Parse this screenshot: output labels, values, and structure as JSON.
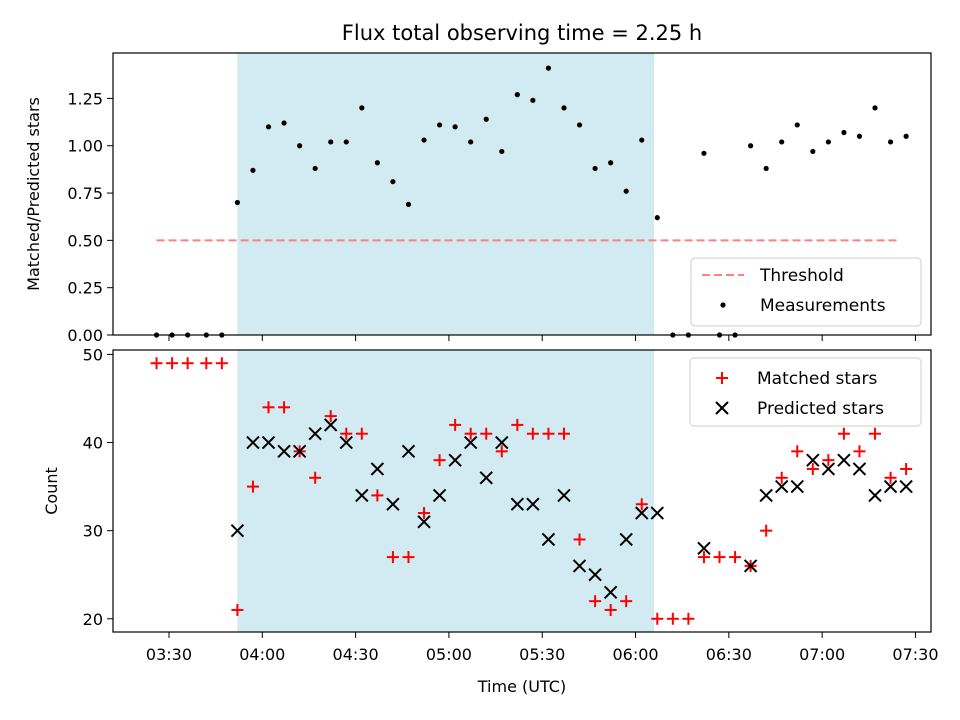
{
  "chart_data": [
    {
      "type": "scatter",
      "title": "Flux total observing time = 2.25 h",
      "ylabel": "Matched/Predicted stars",
      "ylim": [
        0,
        1.49
      ],
      "yticks": [
        0.0,
        0.25,
        0.5,
        0.75,
        1.0,
        1.25
      ],
      "ytick_labels": [
        "0.00",
        "0.25",
        "0.50",
        "0.75",
        "1.00",
        "1.25"
      ],
      "shaded_interval": [
        "03:52",
        "06:06"
      ],
      "shade_color": "#add8e6",
      "legend_position": "lower-right",
      "series": [
        {
          "name": "Threshold",
          "type": "line",
          "color": "#ff7f7f",
          "style": "dashed",
          "x": [
            "03:26",
            "07:25"
          ],
          "y": [
            0.5,
            0.5
          ]
        },
        {
          "name": "Measurements",
          "type": "scatter",
          "color": "#000000",
          "marker": "dot",
          "x": [
            "03:26",
            "03:31",
            "03:36",
            "03:42",
            "03:47",
            "03:52",
            "03:57",
            "04:02",
            "04:07",
            "04:12",
            "04:17",
            "04:22",
            "04:27",
            "04:32",
            "04:37",
            "04:42",
            "04:47",
            "04:52",
            "04:57",
            "05:02",
            "05:07",
            "05:12",
            "05:17",
            "05:22",
            "05:27",
            "05:32",
            "05:37",
            "05:42",
            "05:47",
            "05:52",
            "05:57",
            "06:02",
            "06:07",
            "06:12",
            "06:17",
            "06:22",
            "06:27",
            "06:32",
            "06:37",
            "06:42",
            "06:47",
            "06:52",
            "06:57",
            "07:02",
            "07:07",
            "07:12",
            "07:17",
            "07:22",
            "07:27"
          ],
          "y": [
            0,
            0,
            0,
            0,
            0,
            0.7,
            0.87,
            1.1,
            1.12,
            1.0,
            0.88,
            1.02,
            1.02,
            1.2,
            0.91,
            0.81,
            0.69,
            1.03,
            1.11,
            1.1,
            1.02,
            1.14,
            0.97,
            1.27,
            1.24,
            1.41,
            1.2,
            1.11,
            0.88,
            0.91,
            0.76,
            1.03,
            0.62,
            0,
            0,
            0.96,
            0,
            0,
            1.0,
            0.88,
            1.02,
            1.11,
            0.97,
            1.02,
            1.07,
            1.05,
            1.2,
            1.02,
            1.05
          ]
        }
      ]
    },
    {
      "type": "scatter",
      "xlabel": "Time (UTC)",
      "ylabel": "Count",
      "ylim": [
        18.5,
        50.5
      ],
      "yticks": [
        20,
        30,
        40,
        50
      ],
      "ytick_labels": [
        "20",
        "30",
        "40",
        "50"
      ],
      "xticks": [
        "03:30",
        "04:00",
        "04:30",
        "05:00",
        "05:30",
        "06:00",
        "06:30",
        "07:00",
        "07:30"
      ],
      "xlim": [
        "03:12",
        "07:35"
      ],
      "shaded_interval": [
        "03:52",
        "06:06"
      ],
      "shade_color": "#add8e6",
      "legend_position": "upper-right",
      "series": [
        {
          "name": "Matched stars",
          "type": "scatter",
          "color": "#ff0000",
          "marker": "plus",
          "x": [
            "03:26",
            "03:31",
            "03:36",
            "03:42",
            "03:47",
            "03:52",
            "03:57",
            "04:02",
            "04:07",
            "04:12",
            "04:17",
            "04:22",
            "04:27",
            "04:32",
            "04:37",
            "04:42",
            "04:47",
            "04:52",
            "04:57",
            "05:02",
            "05:07",
            "05:12",
            "05:17",
            "05:22",
            "05:27",
            "05:32",
            "05:37",
            "05:42",
            "05:47",
            "05:52",
            "05:57",
            "06:02",
            "06:07",
            "06:12",
            "06:17",
            "06:22",
            "06:27",
            "06:32",
            "06:37",
            "06:42",
            "06:47",
            "06:52",
            "06:57",
            "07:02",
            "07:07",
            "07:12",
            "07:17",
            "07:22",
            "07:27"
          ],
          "y": [
            49,
            49,
            49,
            49,
            49,
            21,
            35,
            44,
            44,
            39,
            36,
            43,
            41,
            41,
            34,
            27,
            27,
            32,
            38,
            42,
            41,
            41,
            39,
            42,
            41,
            41,
            41,
            29,
            22,
            21,
            22,
            33,
            20,
            20,
            20,
            27,
            27,
            27,
            26,
            30,
            36,
            39,
            37,
            38,
            41,
            39,
            41,
            36,
            37
          ]
        },
        {
          "name": "Predicted stars",
          "type": "scatter",
          "color": "#000000",
          "marker": "x",
          "x": [
            "03:52",
            "03:57",
            "04:02",
            "04:07",
            "04:12",
            "04:17",
            "04:22",
            "04:27",
            "04:32",
            "04:37",
            "04:42",
            "04:47",
            "04:52",
            "04:57",
            "05:02",
            "05:07",
            "05:12",
            "05:17",
            "05:22",
            "05:27",
            "05:32",
            "05:37",
            "05:42",
            "05:47",
            "05:52",
            "05:57",
            "06:02",
            "06:07",
            "06:22",
            "06:37",
            "06:42",
            "06:47",
            "06:52",
            "06:57",
            "07:02",
            "07:07",
            "07:12",
            "07:17",
            "07:22",
            "07:27"
          ],
          "y": [
            30,
            40,
            40,
            39,
            39,
            41,
            42,
            40,
            34,
            37,
            33,
            39,
            31,
            34,
            38,
            40,
            36,
            40,
            33,
            33,
            29,
            34,
            26,
            25,
            23,
            29,
            32,
            32,
            28,
            26,
            34,
            35,
            35,
            38,
            37,
            38,
            37,
            34,
            35,
            35
          ]
        }
      ]
    }
  ]
}
